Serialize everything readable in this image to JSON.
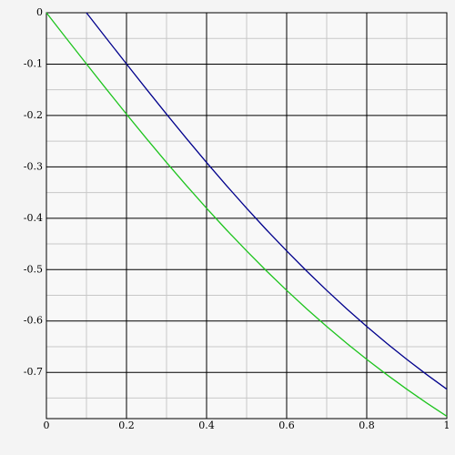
{
  "chart_data": {
    "type": "line",
    "xlim": [
      0,
      1
    ],
    "ylim": [
      -0.79,
      0
    ],
    "xticks": [
      0,
      0.2,
      0.4,
      0.6,
      0.8,
      1
    ],
    "yticks": [
      0,
      -0.1,
      -0.2,
      -0.3,
      -0.4,
      -0.5,
      -0.6,
      -0.7
    ],
    "xminor": [
      0.1,
      0.3,
      0.5,
      0.7,
      0.9
    ],
    "yminor": [
      -0.05,
      -0.15,
      -0.25,
      -0.35,
      -0.45,
      -0.55,
      -0.65,
      -0.75
    ],
    "grid": true,
    "series": [
      {
        "color": "#1ec41e",
        "x": [
          0,
          0.05,
          0.1,
          0.15,
          0.2,
          0.25,
          0.3,
          0.35,
          0.4,
          0.45,
          0.5,
          0.55,
          0.6,
          0.65,
          0.7,
          0.75,
          0.8,
          0.85,
          0.9,
          0.95,
          1
        ],
        "values": [
          0,
          -0.05,
          -0.0997,
          -0.1489,
          -0.1974,
          -0.245,
          -0.2915,
          -0.3367,
          -0.3805,
          -0.4229,
          -0.4636,
          -0.5028,
          -0.5404,
          -0.5764,
          -0.6107,
          -0.6435,
          -0.6747,
          -0.7044,
          -0.7328,
          -0.7598,
          -0.7854
        ]
      },
      {
        "color": "#00008c",
        "x": [
          0.1,
          0.15,
          0.2,
          0.25,
          0.3,
          0.35,
          0.4,
          0.45,
          0.5,
          0.55,
          0.6,
          0.65,
          0.7,
          0.75,
          0.8,
          0.85,
          0.9,
          0.95,
          1
        ],
        "values": [
          0,
          -0.05,
          -0.0997,
          -0.1489,
          -0.1974,
          -0.245,
          -0.2915,
          -0.3367,
          -0.3805,
          -0.4229,
          -0.4636,
          -0.5028,
          -0.5404,
          -0.5764,
          -0.6107,
          -0.6435,
          -0.6747,
          -0.7044,
          -0.7328
        ]
      }
    ]
  }
}
